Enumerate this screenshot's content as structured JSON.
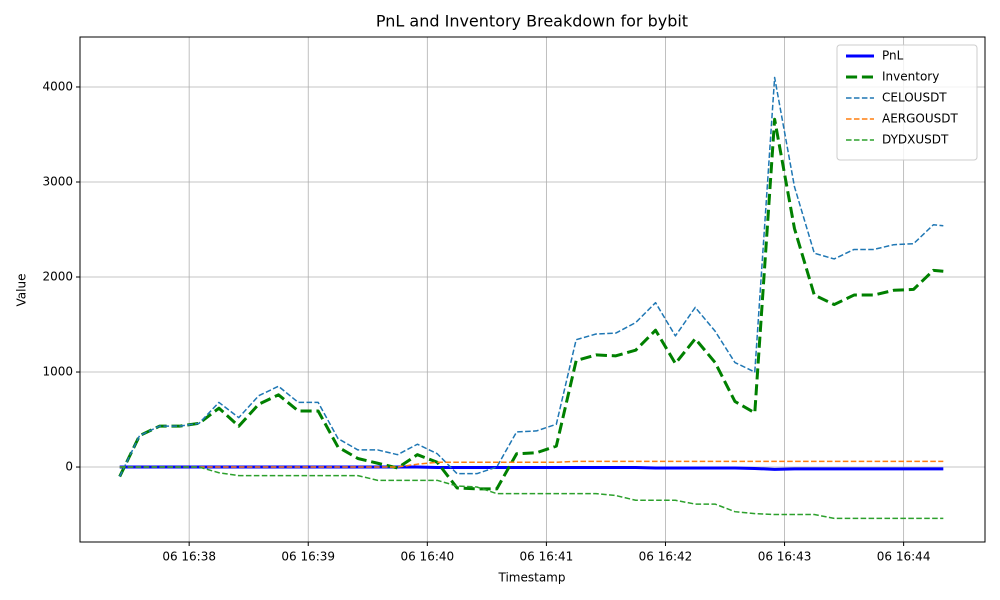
{
  "chart_data": {
    "type": "line",
    "title": "PnL and Inventory Breakdown for bybit",
    "xlabel": "Timestamp",
    "ylabel": "Value",
    "x": [
      "06 16:37:25",
      "06 16:37:35",
      "06 16:37:45",
      "06 16:37:55",
      "06 16:38:05",
      "06 16:38:15",
      "06 16:38:25",
      "06 16:38:35",
      "06 16:38:45",
      "06 16:38:55",
      "06 16:39:05",
      "06 16:39:15",
      "06 16:39:25",
      "06 16:39:35",
      "06 16:39:45",
      "06 16:39:55",
      "06 16:40:05",
      "06 16:40:15",
      "06 16:40:25",
      "06 16:40:35",
      "06 16:40:45",
      "06 16:40:55",
      "06 16:41:05",
      "06 16:41:15",
      "06 16:41:25",
      "06 16:41:35",
      "06 16:41:45",
      "06 16:41:55",
      "06 16:42:05",
      "06 16:42:15",
      "06 16:42:25",
      "06 16:42:35",
      "06 16:42:45",
      "06 16:42:55",
      "06 16:43:05",
      "06 16:43:15",
      "06 16:43:25",
      "06 16:43:35",
      "06 16:43:45",
      "06 16:43:55",
      "06 16:44:05",
      "06 16:44:15",
      "06 16:44:20"
    ],
    "series": [
      {
        "name": "PnL",
        "color": "#0000ff",
        "linestyle": "solid",
        "linewidth": 3,
        "values": [
          0,
          0,
          0,
          0,
          0,
          0,
          0,
          0,
          0,
          0,
          0,
          0,
          0,
          0,
          0,
          0,
          -5,
          -5,
          -5,
          -5,
          -5,
          -5,
          -5,
          -5,
          -5,
          -5,
          -5,
          -10,
          -10,
          -10,
          -10,
          -10,
          -15,
          -25,
          -20,
          -20,
          -20,
          -20,
          -20,
          -20,
          -20,
          -20,
          -20
        ]
      },
      {
        "name": "Inventory",
        "color": "#008000",
        "linestyle": "dashed",
        "linewidth": 3,
        "values": [
          -100,
          330,
          430,
          430,
          460,
          620,
          430,
          660,
          760,
          590,
          590,
          210,
          90,
          40,
          -10,
          130,
          50,
          -220,
          -230,
          -230,
          140,
          150,
          220,
          1120,
          1180,
          1170,
          1230,
          1440,
          1090,
          1350,
          1100,
          690,
          570,
          3660,
          2510,
          1810,
          1710,
          1810,
          1810,
          1860,
          1870,
          2070,
          2060
        ]
      },
      {
        "name": "CELOUSDT",
        "color": "#1f77b4",
        "linestyle": "dashed",
        "linewidth": 1.5,
        "values": [
          -100,
          330,
          430,
          430,
          460,
          680,
          520,
          750,
          850,
          680,
          680,
          300,
          180,
          180,
          130,
          240,
          140,
          -70,
          -70,
          0,
          370,
          380,
          450,
          1340,
          1400,
          1410,
          1520,
          1730,
          1380,
          1680,
          1430,
          1100,
          1000,
          4100,
          2950,
          2250,
          2190,
          2290,
          2290,
          2340,
          2350,
          2550,
          2540
        ]
      },
      {
        "name": "AERGOUSDT",
        "color": "#ff7f0e",
        "linestyle": "dashed",
        "linewidth": 1.5,
        "values": [
          0,
          0,
          0,
          0,
          0,
          0,
          0,
          0,
          0,
          0,
          0,
          0,
          0,
          0,
          0,
          30,
          50,
          50,
          50,
          50,
          50,
          50,
          50,
          60,
          60,
          60,
          60,
          60,
          60,
          60,
          60,
          60,
          60,
          60,
          60,
          60,
          60,
          60,
          60,
          60,
          60,
          60,
          60
        ]
      },
      {
        "name": "DYDXUSDT",
        "color": "#2ca02c",
        "linestyle": "dashed",
        "linewidth": 1.5,
        "values": [
          0,
          0,
          0,
          0,
          0,
          -60,
          -90,
          -90,
          -90,
          -90,
          -90,
          -90,
          -90,
          -140,
          -140,
          -140,
          -140,
          -200,
          -210,
          -280,
          -280,
          -280,
          -280,
          -280,
          -280,
          -300,
          -350,
          -350,
          -350,
          -390,
          -390,
          -470,
          -490,
          -500,
          -500,
          -500,
          -540,
          -540,
          -540,
          -540,
          -540,
          -540,
          -540
        ]
      }
    ],
    "xlim": [
      "06 16:37:05",
      "06 16:44:41"
    ],
    "xticks": [
      {
        "value": "06 16:38:00",
        "label": "06 16:38"
      },
      {
        "value": "06 16:39:00",
        "label": "06 16:39"
      },
      {
        "value": "06 16:40:00",
        "label": "06 16:40"
      },
      {
        "value": "06 16:41:00",
        "label": "06 16:41"
      },
      {
        "value": "06 16:42:00",
        "label": "06 16:42"
      },
      {
        "value": "06 16:43:00",
        "label": "06 16:43"
      },
      {
        "value": "06 16:44:00",
        "label": "06 16:44"
      }
    ],
    "ylim": [
      -789,
      4526
    ],
    "yticks": [
      0,
      1000,
      2000,
      3000,
      4000
    ],
    "grid": true,
    "legend": "upper right"
  }
}
